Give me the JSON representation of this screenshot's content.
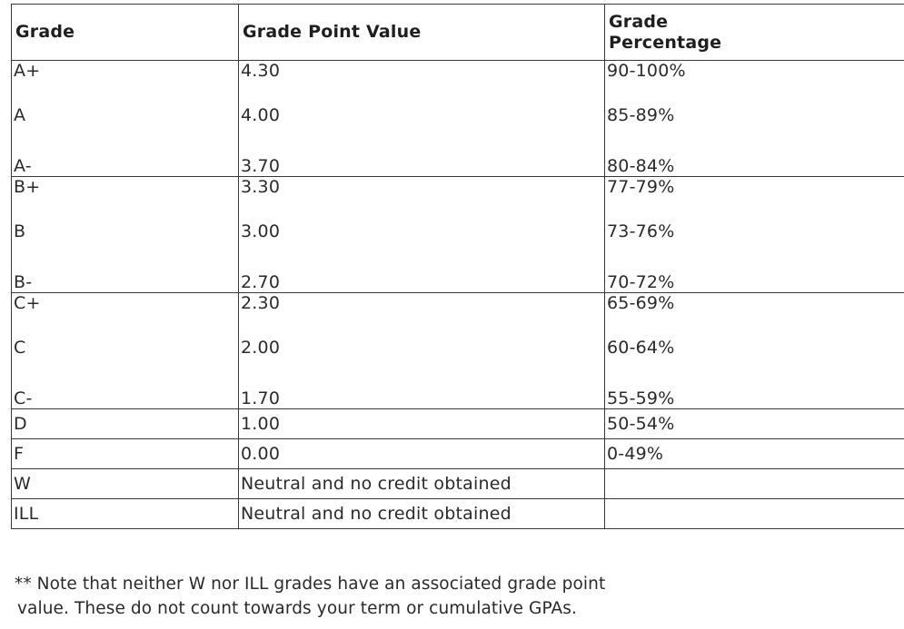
{
  "table": {
    "headers": [
      "Grade",
      "Grade Point Value",
      "Grade\nPercentage"
    ],
    "rows": [
      [
        "A+",
        "4.30",
        "90-100%"
      ],
      [
        "A",
        "4.00",
        "85-89%"
      ],
      [
        "A-",
        "3.70",
        "80-84%"
      ],
      [
        "B+",
        "3.30",
        "77-79%"
      ],
      [
        "B",
        "3.00",
        "73-76%"
      ],
      [
        "B-",
        "2.70",
        "70-72%"
      ],
      [
        "C+",
        "2.30",
        "65-69%"
      ],
      [
        "C",
        "2.00",
        "60-64%"
      ],
      [
        "C-",
        "1.70",
        "55-59%"
      ],
      [
        "D",
        "1.00",
        "50-54%"
      ],
      [
        "F",
        "0.00",
        "0-49%"
      ],
      [
        "W",
        "Neutral and no credit obtained",
        ""
      ],
      [
        "ILL",
        "Neutral and no credit obtained",
        ""
      ]
    ]
  },
  "note": {
    "line1": "** Note that neither W nor ILL grades have an associated grade point",
    "line2": "value. These do not count towards your term or cumulative GPAs."
  }
}
